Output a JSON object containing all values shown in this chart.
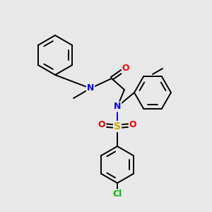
{
  "background_color": "#e8e8e8",
  "atom_colors": {
    "N": "#0000ee",
    "O": "#ff0000",
    "S": "#ccaa00",
    "Cl": "#00bb00",
    "C": "#000000"
  },
  "figsize": [
    3.0,
    3.0
  ],
  "dpi": 100
}
